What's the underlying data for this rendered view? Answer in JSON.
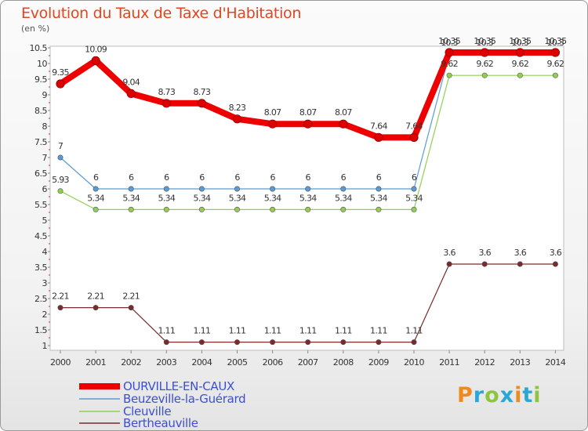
{
  "chart_data": {
    "type": "line",
    "title": "Evolution du Taux de Taxe d'Habitation",
    "unit": "(en %)",
    "x": [
      "2000",
      "2001",
      "2002",
      "2003",
      "2004",
      "2005",
      "2006",
      "2007",
      "2008",
      "2009",
      "2010",
      "2011",
      "2012",
      "2013",
      "2014"
    ],
    "ylim": [
      1,
      10.5
    ],
    "yticks": [
      "1",
      "1.5",
      "2",
      "2.5",
      "3",
      "3.5",
      "4",
      "4.5",
      "5",
      "5.5",
      "6",
      "6.5",
      "7",
      "7.5",
      "8",
      "8.5",
      "9",
      "9.5",
      "10",
      "10.5"
    ],
    "grid": false,
    "legend_position": "bottom-left",
    "series": [
      {
        "name": "OURVILLE-EN-CAUX",
        "color": "#ee0000",
        "values": [
          9.35,
          10.09,
          9.04,
          8.73,
          8.73,
          8.23,
          8.07,
          8.07,
          8.07,
          7.64,
          7.64,
          10.35,
          10.35,
          10.35,
          10.35
        ],
        "labels": [
          "9.35",
          "10.09",
          "9.04",
          "8.73",
          "8.73",
          "8.23",
          "8.07",
          "8.07",
          "8.07",
          "7.64",
          "7.64",
          "10.35",
          "10.35",
          "10.35",
          "10.35"
        ]
      },
      {
        "name": "Beuzeville-la-Guérard",
        "color": "#5b9bd5",
        "values": [
          7,
          6,
          6,
          6,
          6,
          6,
          6,
          6,
          6,
          6,
          6,
          10.3,
          10.3,
          10.3,
          10.3
        ],
        "labels": [
          "7",
          "6",
          "6",
          "6",
          "6",
          "6",
          "6",
          "6",
          "6",
          "6",
          "6",
          "10.3",
          "10.3",
          "10.3",
          "10.3"
        ]
      },
      {
        "name": "Cleuville",
        "color": "#8fd14f",
        "values": [
          5.93,
          5.34,
          5.34,
          5.34,
          5.34,
          5.34,
          5.34,
          5.34,
          5.34,
          5.34,
          5.34,
          9.62,
          9.62,
          9.62,
          9.62
        ],
        "labels": [
          "5.93",
          "5.34",
          "5.34",
          "5.34",
          "5.34",
          "5.34",
          "5.34",
          "5.34",
          "5.34",
          "5.34",
          "5.34",
          "9.62",
          "9.62",
          "9.62",
          "9.62"
        ]
      },
      {
        "name": "Bertheauville",
        "color": "#7a2a2a",
        "values": [
          2.21,
          2.21,
          2.21,
          1.11,
          1.11,
          1.11,
          1.11,
          1.11,
          1.11,
          1.11,
          1.11,
          3.6,
          3.6,
          3.6,
          3.6
        ],
        "labels": [
          "2.21",
          "2.21",
          "2.21",
          "1.11",
          "1.11",
          "1.11",
          "1.11",
          "1.11",
          "1.11",
          "1.11",
          "1.11",
          "3.6",
          "3.6",
          "3.6",
          "3.6"
        ]
      }
    ]
  },
  "logo": {
    "text": "Proxiti",
    "colors": [
      "#f08a1c",
      "#2aa7d9",
      "#8cc63f",
      "#2aa7d9",
      "#f08a1c",
      "#2aa7d9",
      "#8cc63f"
    ]
  }
}
